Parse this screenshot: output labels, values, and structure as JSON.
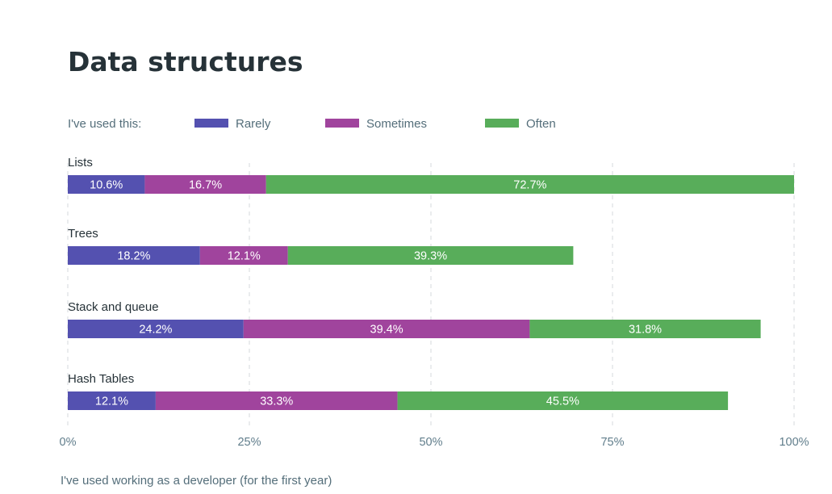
{
  "chart_data": {
    "type": "bar",
    "orientation": "horizontal",
    "stacked": true,
    "title": "Data structures",
    "legend_prefix": "I've used this:",
    "legend_position": "top",
    "categories": [
      "Lists",
      "Trees",
      "Stack and queue",
      "Hash Tables"
    ],
    "series": [
      {
        "name": "Rarely",
        "color": "#5451b0",
        "values": [
          10.6,
          18.2,
          24.2,
          12.1
        ],
        "labels": [
          "10.6%",
          "18.2%",
          "24.2%",
          "12.1%"
        ]
      },
      {
        "name": "Sometimes",
        "color": "#a0449d",
        "values": [
          16.7,
          12.1,
          39.4,
          33.3
        ],
        "labels": [
          "16.7%",
          "12.1%",
          "39.4%",
          "33.3%"
        ]
      },
      {
        "name": "Often",
        "color": "#58ad5a",
        "values": [
          72.7,
          39.3,
          31.8,
          45.5
        ],
        "labels": [
          "72.7%",
          "39.3%",
          "31.8%",
          "45.5%"
        ]
      }
    ],
    "xlim": [
      0,
      100
    ],
    "x_ticks": [
      "0%",
      "25%",
      "50%",
      "75%",
      "100%"
    ],
    "grid": true,
    "footnote": "I've used working as a developer (for the first year)"
  }
}
